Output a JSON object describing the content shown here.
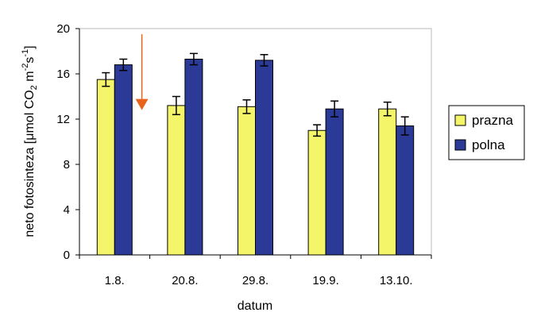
{
  "chart_data": {
    "type": "bar",
    "categories": [
      "1.8.",
      "20.8.",
      "29.8.",
      "19.9.",
      "13.10."
    ],
    "series": [
      {
        "name": "prazna",
        "color": "#f5f56a",
        "values": [
          15.5,
          13.2,
          13.1,
          11.0,
          12.9
        ],
        "errors": [
          0.6,
          0.8,
          0.6,
          0.5,
          0.6
        ]
      },
      {
        "name": "polna",
        "color": "#2a3a96",
        "values": [
          16.8,
          17.3,
          17.2,
          12.9,
          11.4
        ],
        "errors": [
          0.5,
          0.5,
          0.5,
          0.7,
          0.8
        ]
      }
    ],
    "xlabel": "datum",
    "ylabel_parts": [
      "neto fotosinteza  [μmol CO",
      "2",
      " m",
      "-2",
      "s",
      "-1",
      "]"
    ],
    "ylim": [
      0,
      20
    ],
    "yticks": [
      "0",
      "4",
      "8",
      "12",
      "16",
      "20"
    ],
    "annotation": {
      "type": "arrow",
      "color": "#e8641c",
      "x_between": [
        "1.8.",
        "20.8."
      ],
      "from_y": 19.5,
      "to_y": 12.8
    },
    "legend_position": "right",
    "grid": false
  }
}
